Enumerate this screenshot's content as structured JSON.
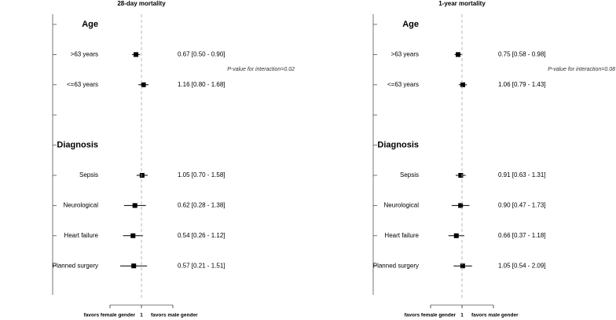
{
  "chart_data": [
    {
      "type": "forest",
      "title": "28-day mortality",
      "categories": [
        "Age",
        ">63 years",
        "<=63 years",
        null,
        "Diagnosis",
        "Sepsis",
        "Neurological",
        "Heart failure",
        "Planned surgery"
      ],
      "values": [
        null,
        0.67,
        1.16,
        null,
        null,
        1.05,
        0.62,
        0.54,
        0.57
      ],
      "lower": [
        null,
        0.5,
        0.8,
        null,
        null,
        0.7,
        0.28,
        0.26,
        0.21
      ],
      "upper": [
        null,
        0.9,
        1.68,
        null,
        null,
        1.58,
        1.38,
        1.12,
        1.51
      ],
      "value_labels": [
        null,
        "0.67 [0.50 - 0.90]",
        "1.16 [0.80 - 1.68]",
        null,
        null,
        "1.05 [0.70 - 1.58]",
        "0.62 [0.28 - 1.38]",
        "0.54 [0.26 - 1.12]",
        "0.57 [0.21 - 1.51]"
      ],
      "annotation": "P-value for interaction=0.02",
      "left_label": "favors female gender",
      "right_label": "favors male gender",
      "xlim": [
        0.1,
        10
      ],
      "xticks": [
        1
      ],
      "log_x": true,
      "color": "#000000"
    },
    {
      "type": "forest",
      "title": "1-year mortality",
      "categories": [
        "Age",
        ">63 years",
        "<=63 years",
        null,
        "Diagnosis",
        "Sepsis",
        "Neurological",
        "Heart failure",
        "Planned surgery"
      ],
      "values": [
        null,
        0.75,
        1.06,
        null,
        null,
        0.91,
        0.9,
        0.66,
        1.05
      ],
      "lower": [
        null,
        0.58,
        0.79,
        null,
        null,
        0.63,
        0.47,
        0.37,
        0.54
      ],
      "upper": [
        null,
        0.98,
        1.43,
        null,
        null,
        1.31,
        1.73,
        1.18,
        2.09
      ],
      "value_labels": [
        null,
        "0.75 [0.58 - 0.98]",
        "1.06 [0.79 - 1.43]",
        null,
        null,
        "0.91 [0.63 - 1.31]",
        "0.90 [0.47 - 1.73]",
        "0.66 [0.37 - 1.18]",
        "1.05 [0.54 - 2.09]"
      ],
      "annotation": "P-value for interaction=0.08",
      "left_label": "favors female gender",
      "right_label": "favors male gender",
      "xlim": [
        0.1,
        10
      ],
      "xticks": [
        1
      ],
      "log_x": true,
      "color": "#000000"
    }
  ]
}
